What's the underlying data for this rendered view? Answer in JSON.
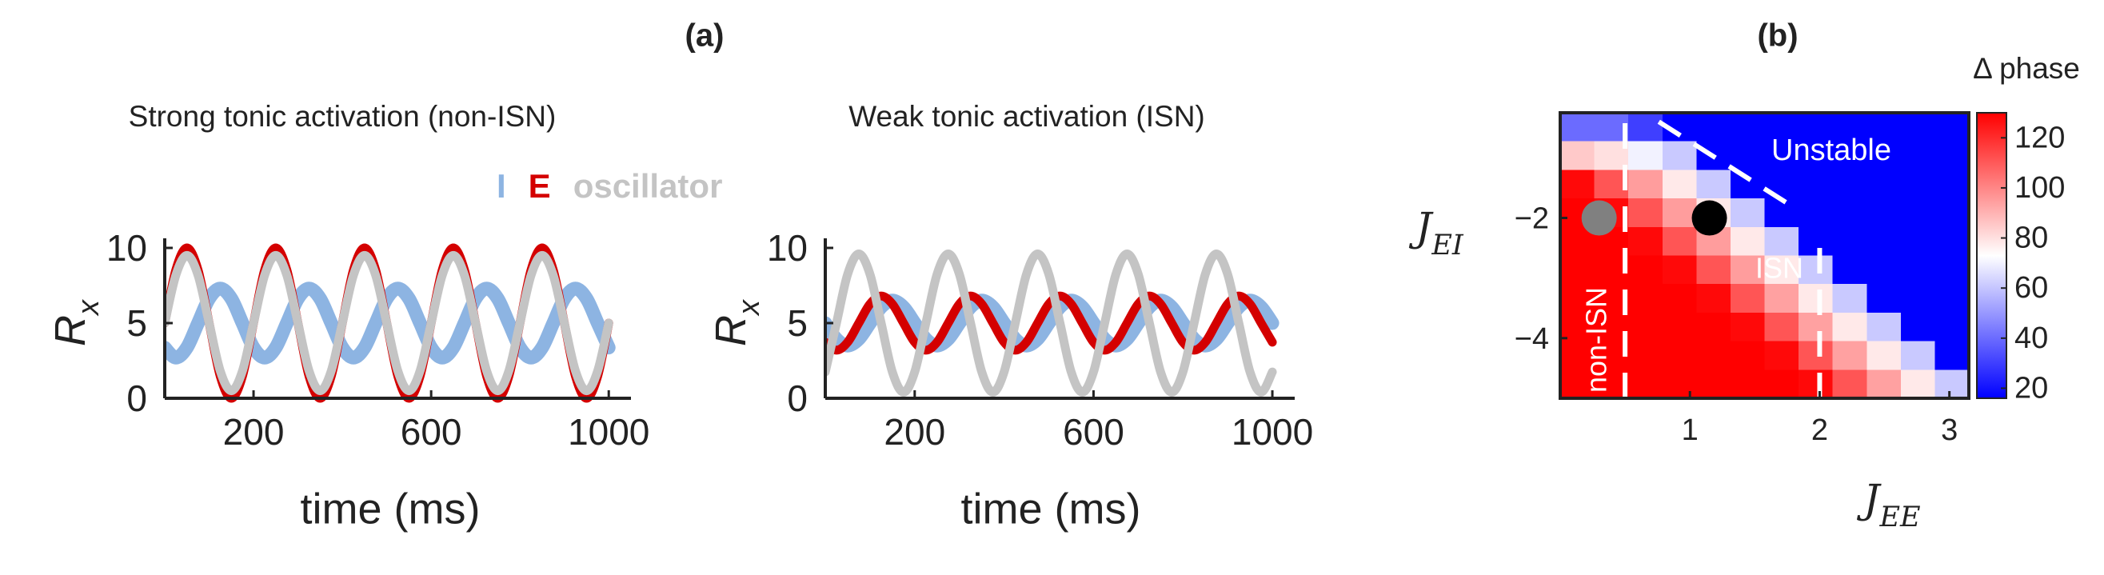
{
  "chart_data": [
    {
      "type": "line",
      "panel_label": "(a)",
      "subtitle": "Strong tonic activation (non-ISN)",
      "xlabel": "time (ms)",
      "ylabel": "R",
      "ylabel_subscript": "x",
      "legend": true,
      "xlim": [
        0,
        1050
      ],
      "ylim": [
        0,
        10
      ],
      "xticks": [
        200,
        600,
        1000
      ],
      "yticks": [
        0,
        5,
        10
      ],
      "x": [
        0,
        25,
        50,
        75,
        100,
        125,
        150,
        175,
        200,
        225,
        250,
        275,
        300,
        325,
        350,
        375,
        400,
        425,
        450,
        475,
        500,
        525,
        550,
        575,
        600,
        625,
        650,
        675,
        700,
        725,
        750,
        775,
        800,
        825,
        850,
        875,
        900,
        925,
        950,
        975,
        1000
      ],
      "series": [
        {
          "name": "I",
          "color": "#8db4e2",
          "values": [
            3.37,
            2.7,
            3.37,
            5,
            6.63,
            7.3,
            6.63,
            5,
            3.37,
            2.7,
            3.37,
            5,
            6.63,
            7.3,
            6.63,
            5,
            3.37,
            2.7,
            3.37,
            5,
            6.63,
            7.3,
            6.63,
            5,
            3.37,
            2.7,
            3.37,
            5,
            6.63,
            7.3,
            6.63,
            5,
            3.37,
            2.7,
            3.37,
            5,
            6.63,
            7.3,
            6.63,
            5,
            3.37
          ]
        },
        {
          "name": "E",
          "color": "#d40000",
          "values": [
            5,
            8.54,
            10,
            8.54,
            5,
            1.46,
            0,
            1.46,
            5,
            8.54,
            10,
            8.54,
            5,
            1.46,
            0,
            1.46,
            5,
            8.54,
            10,
            8.54,
            5,
            1.46,
            0,
            1.46,
            5,
            8.54,
            10,
            8.54,
            5,
            1.46,
            0,
            1.46,
            5,
            8.54,
            10,
            8.54,
            5,
            1.46,
            0,
            1.46,
            5
          ]
        },
        {
          "name": "oscillator",
          "color": "#c4c4c4",
          "values": [
            5,
            8.18,
            9.5,
            8.18,
            5,
            1.82,
            0.5,
            1.82,
            5,
            8.18,
            9.5,
            8.18,
            5,
            1.82,
            0.5,
            1.82,
            5,
            8.18,
            9.5,
            8.18,
            5,
            1.82,
            0.5,
            1.82,
            5,
            8.18,
            9.5,
            8.18,
            5,
            1.82,
            0.5,
            1.82,
            5,
            8.18,
            9.5,
            8.18,
            5,
            1.82,
            0.5,
            1.82,
            5
          ]
        }
      ]
    },
    {
      "type": "line",
      "subtitle": "Weak tonic activation (ISN)",
      "xlabel": "time (ms)",
      "ylabel": "R",
      "ylabel_subscript": "x",
      "legend": false,
      "xlim": [
        0,
        1050
      ],
      "ylim": [
        0,
        10
      ],
      "xticks": [
        200,
        600,
        1000
      ],
      "yticks": [
        0,
        5,
        10
      ],
      "x": [
        0,
        25,
        50,
        75,
        100,
        125,
        150,
        175,
        200,
        225,
        250,
        275,
        300,
        325,
        350,
        375,
        400,
        425,
        450,
        475,
        500,
        525,
        550,
        575,
        600,
        625,
        650,
        675,
        700,
        725,
        750,
        775,
        800,
        825,
        850,
        875,
        900,
        925,
        950,
        975,
        1000
      ],
      "series": [
        {
          "name": "I",
          "color": "#8db4e2",
          "values": [
            5,
            3.94,
            3.5,
            3.94,
            5,
            6.06,
            6.5,
            6.06,
            5,
            3.94,
            3.5,
            3.94,
            5,
            6.06,
            6.5,
            6.06,
            5,
            3.94,
            3.5,
            3.94,
            5,
            6.06,
            6.5,
            6.06,
            5,
            3.94,
            3.5,
            3.94,
            5,
            6.06,
            6.5,
            6.06,
            5,
            3.94,
            3.5,
            3.94,
            5,
            6.06,
            6.5,
            6.06,
            5
          ]
        },
        {
          "name": "E",
          "color": "#d40000",
          "values": [
            3.73,
            3.2,
            3.73,
            5,
            6.27,
            6.8,
            6.27,
            5,
            3.73,
            3.2,
            3.73,
            5,
            6.27,
            6.8,
            6.27,
            5,
            3.73,
            3.2,
            3.73,
            5,
            6.27,
            6.8,
            6.27,
            5,
            3.73,
            3.2,
            3.73,
            5,
            6.27,
            6.8,
            6.27,
            5,
            3.73,
            3.2,
            3.73,
            5,
            6.27,
            6.8,
            6.27,
            5,
            3.73
          ]
        },
        {
          "name": "oscillator",
          "color": "#c4c4c4",
          "values": [
            1.75,
            5,
            8.25,
            9.6,
            8.25,
            5,
            1.75,
            0.4,
            1.75,
            5,
            8.25,
            9.6,
            8.25,
            5,
            1.75,
            0.4,
            1.75,
            5,
            8.25,
            9.6,
            8.25,
            5,
            1.75,
            0.4,
            1.75,
            5,
            8.25,
            9.6,
            8.25,
            5,
            1.75,
            0.4,
            1.75,
            5,
            8.25,
            9.6,
            8.25,
            5,
            1.75,
            0.4,
            1.75
          ]
        }
      ]
    },
    {
      "type": "heatmap",
      "panel_label": "(b)",
      "colorbar_title": "Δ phase",
      "xlabel": "J",
      "xlabel_subscript": "EE",
      "ylabel": "J",
      "ylabel_subscript": "EI",
      "xlim": [
        0,
        3.15
      ],
      "ylim": [
        -5,
        -0.25
      ],
      "xticks": [
        1,
        2,
        3
      ],
      "yticks": [
        {
          "value": -2,
          "label": "−2"
        },
        {
          "value": -4,
          "label": "−4"
        }
      ],
      "clim": [
        16,
        130
      ],
      "cticks": [
        20,
        40,
        60,
        80,
        100,
        120
      ],
      "colormap": [
        "#0000ff",
        "#ffffff",
        "#ff0000"
      ],
      "z": [
        [
          40,
          40,
          30,
          16,
          16,
          16,
          16,
          16,
          16,
          16,
          16,
          16
        ],
        [
          85,
          80,
          70,
          61,
          16,
          16,
          16,
          16,
          16,
          16,
          16,
          16
        ],
        [
          128,
          111,
          95,
          78,
          61,
          16,
          16,
          16,
          16,
          16,
          16,
          16
        ],
        [
          130,
          128,
          111,
          95,
          78,
          61,
          16,
          16,
          16,
          16,
          16,
          16
        ],
        [
          130,
          130,
          128,
          111,
          95,
          78,
          61,
          16,
          16,
          16,
          16,
          16
        ],
        [
          130,
          130,
          130,
          128,
          111,
          95,
          78,
          61,
          16,
          16,
          16,
          16
        ],
        [
          130,
          130,
          130,
          130,
          128,
          111,
          94,
          78,
          61,
          16,
          16,
          16
        ],
        [
          130,
          130,
          130,
          130,
          130,
          128,
          111,
          94,
          78,
          61,
          16,
          16
        ],
        [
          130,
          130,
          130,
          130,
          130,
          130,
          128,
          111,
          94,
          78,
          61,
          16
        ],
        [
          130,
          130,
          130,
          130,
          130,
          130,
          130,
          128,
          111,
          94,
          78,
          61
        ]
      ],
      "boundaries": [
        {
          "x": [
            0.5,
            0.5
          ],
          "y": [
            -5,
            -0.25
          ]
        },
        {
          "x": [
            2.0,
            2.0
          ],
          "y": [
            -5,
            -2.35
          ]
        },
        {
          "x": [
            0.76,
            1.82
          ],
          "y": [
            -0.4,
            -1.85
          ]
        }
      ],
      "points": [
        {
          "x": 0.3,
          "y": -2,
          "color": "#808080"
        },
        {
          "x": 1.15,
          "y": -2,
          "color": "#000000"
        }
      ],
      "annotations": [
        "Unstable",
        "ISN",
        "non-ISN"
      ]
    }
  ]
}
